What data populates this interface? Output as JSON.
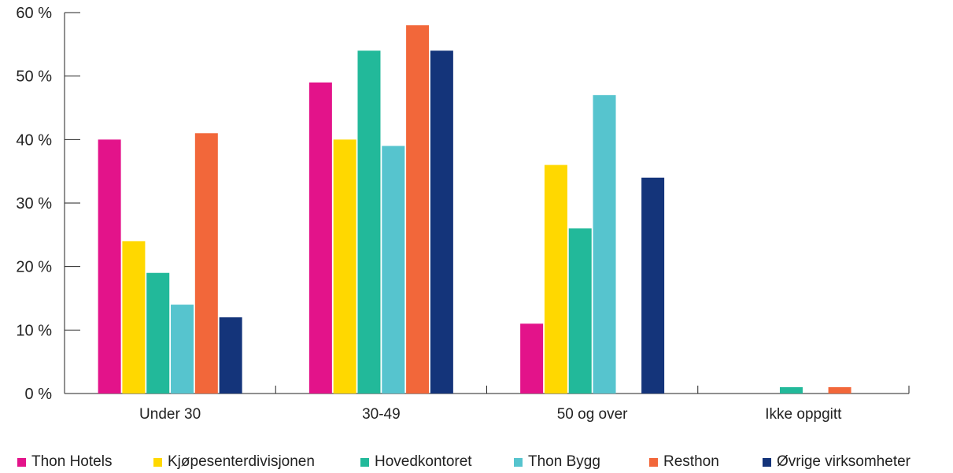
{
  "chart_data": {
    "type": "bar",
    "categories": [
      "Under 30",
      "30-49",
      "50 og over",
      "Ikke oppgitt"
    ],
    "yticks": [
      "0 %",
      "10 %",
      "20 %",
      "30 %",
      "40 %",
      "50 %",
      "60 %"
    ],
    "ylim": [
      0,
      60
    ],
    "grid": false,
    "legend_position": "bottom",
    "series": [
      {
        "name": "Thon Hotels",
        "color": "#e3138a",
        "values": [
          40,
          49,
          11,
          0
        ]
      },
      {
        "name": "Kjøpesenterdivisjonen",
        "color": "#ffd800",
        "values": [
          24,
          40,
          36,
          0
        ]
      },
      {
        "name": "Hovedkontoret",
        "color": "#22b99a",
        "values": [
          19,
          54,
          26,
          1
        ]
      },
      {
        "name": "Thon Bygg",
        "color": "#56c4ce",
        "values": [
          14,
          39,
          47,
          0
        ]
      },
      {
        "name": "Resthon",
        "color": "#f2673a",
        "values": [
          41,
          58,
          0,
          1
        ]
      },
      {
        "name": "Øvrige virksomheter",
        "color": "#14347a",
        "values": [
          12,
          54,
          34,
          0
        ]
      }
    ]
  }
}
